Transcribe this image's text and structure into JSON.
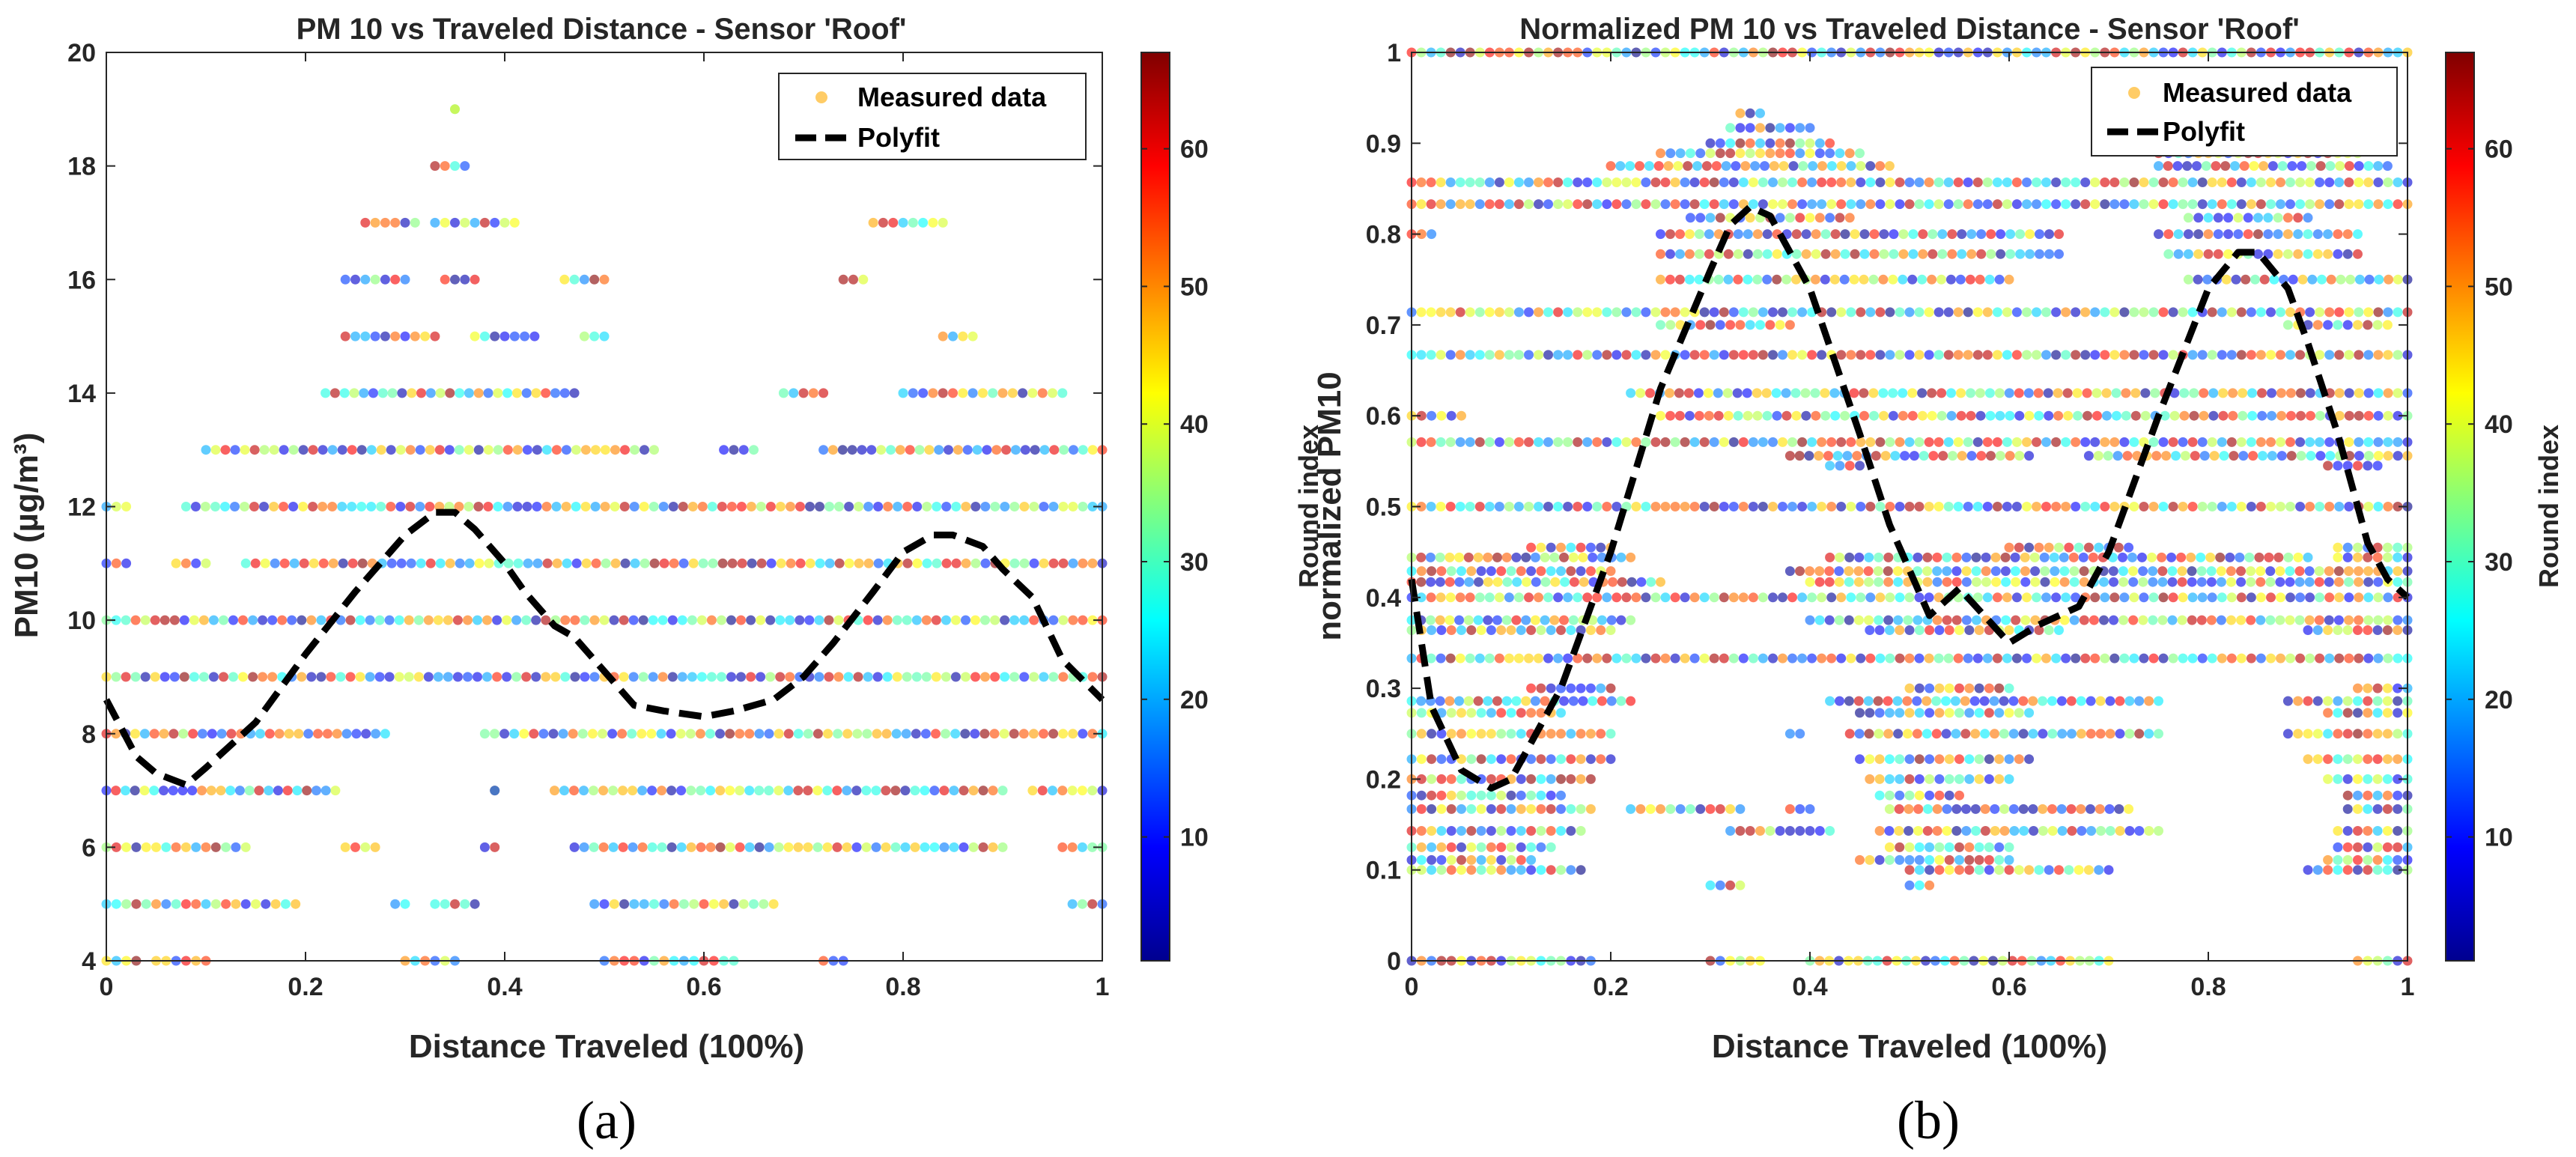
{
  "chart_data": [
    {
      "type": "scatter",
      "panel": "(a)",
      "title": "PM 10 vs Traveled Distance - Sensor 'Roof'",
      "xlabel": "Distance Traveled (100%)",
      "ylabel": "PM10 (µg/m³)",
      "xlim": [
        0,
        1
      ],
      "ylim": [
        4,
        20
      ],
      "xticks": [
        0,
        0.2,
        0.4,
        0.6,
        0.8,
        1
      ],
      "xtick_labels": [
        "0",
        "0.2",
        "0.4",
        "0.6",
        "0.8",
        "1"
      ],
      "yticks": [
        4,
        6,
        8,
        10,
        12,
        14,
        16,
        18,
        20
      ],
      "ytick_labels": [
        "4",
        "6",
        "8",
        "10",
        "12",
        "14",
        "16",
        "18",
        "20"
      ],
      "legend": [
        "Measured data",
        "Polyfit"
      ],
      "legend_location": "top-right",
      "colorbar": {
        "label": "Round index",
        "range": [
          1,
          67
        ],
        "ticks": [
          10,
          20,
          30,
          40,
          50,
          60
        ],
        "tick_labels": [
          "10",
          "20",
          "30",
          "40",
          "50",
          "60"
        ]
      },
      "scatter_rows": [
        {
          "y": 4,
          "ranges": [
            [
              0,
              0.03
            ],
            [
              0.05,
              0.1
            ],
            [
              0.3,
              0.35
            ],
            [
              0.5,
              0.63
            ],
            [
              0.72,
              0.74
            ]
          ]
        },
        {
          "y": 5,
          "ranges": [
            [
              0,
              0.19
            ],
            [
              0.29,
              0.3
            ],
            [
              0.33,
              0.37
            ],
            [
              0.49,
              0.67
            ],
            [
              0.97,
              1
            ]
          ]
        },
        {
          "y": 6,
          "ranges": [
            [
              0,
              0.14
            ],
            [
              0.24,
              0.27
            ],
            [
              0.38,
              0.39
            ],
            [
              0.47,
              0.9
            ],
            [
              0.96,
              1
            ]
          ]
        },
        {
          "y": 7,
          "ranges": [
            [
              0,
              0.23
            ],
            [
              0.39,
              0.39
            ],
            [
              0.45,
              0.9
            ],
            [
              0.93,
              1
            ]
          ]
        },
        {
          "y": 8,
          "ranges": [
            [
              0,
              0.28
            ],
            [
              0.38,
              1
            ]
          ]
        },
        {
          "y": 9,
          "ranges": [
            [
              0,
              1
            ]
          ]
        },
        {
          "y": 10,
          "ranges": [
            [
              0,
              1
            ]
          ]
        },
        {
          "y": 11,
          "ranges": [
            [
              0,
              0.02
            ],
            [
              0.07,
              0.1
            ],
            [
              0.14,
              1
            ]
          ]
        },
        {
          "y": 12,
          "ranges": [
            [
              0,
              0.02
            ],
            [
              0.08,
              1
            ]
          ]
        },
        {
          "y": 13,
          "ranges": [
            [
              0.1,
              0.55
            ],
            [
              0.62,
              0.65
            ],
            [
              0.72,
              1
            ]
          ]
        },
        {
          "y": 14,
          "ranges": [
            [
              0.22,
              0.47
            ],
            [
              0.68,
              0.72
            ],
            [
              0.8,
              0.96
            ]
          ]
        },
        {
          "y": 15,
          "ranges": [
            [
              0.24,
              0.33
            ],
            [
              0.37,
              0.43
            ],
            [
              0.48,
              0.5
            ],
            [
              0.84,
              0.87
            ]
          ]
        },
        {
          "y": 16,
          "ranges": [
            [
              0.24,
              0.3
            ],
            [
              0.34,
              0.37
            ],
            [
              0.46,
              0.5
            ],
            [
              0.74,
              0.76
            ]
          ]
        },
        {
          "y": 17,
          "ranges": [
            [
              0.26,
              0.31
            ],
            [
              0.33,
              0.41
            ],
            [
              0.77,
              0.84
            ]
          ]
        },
        {
          "y": 18,
          "ranges": [
            [
              0.33,
              0.36
            ]
          ]
        },
        {
          "y": 19,
          "ranges": [
            [
              0.35,
              0.35
            ]
          ]
        }
      ],
      "polyfit": {
        "x": [
          0,
          0.03,
          0.05,
          0.08,
          0.1,
          0.15,
          0.2,
          0.25,
          0.3,
          0.33,
          0.35,
          0.37,
          0.4,
          0.42,
          0.45,
          0.47,
          0.5,
          0.53,
          0.56,
          0.6,
          0.63,
          0.67,
          0.7,
          0.73,
          0.77,
          0.8,
          0.83,
          0.85,
          0.88,
          0.9,
          0.93,
          0.96,
          1
        ],
        "y": [
          8.6,
          7.6,
          7.3,
          7.1,
          7.4,
          8.2,
          9.4,
          10.5,
          11.5,
          11.9,
          11.9,
          11.6,
          11.0,
          10.5,
          9.9,
          9.7,
          9.1,
          8.5,
          8.4,
          8.3,
          8.4,
          8.6,
          9.0,
          9.6,
          10.5,
          11.2,
          11.5,
          11.5,
          11.3,
          10.9,
          10.4,
          9.3,
          8.6
        ]
      }
    },
    {
      "type": "scatter",
      "panel": "(b)",
      "title": "Normalized PM 10 vs Traveled Distance - Sensor 'Roof'",
      "xlabel": "Distance Traveled (100%)",
      "ylabel": "normalized PM10",
      "xlim": [
        0,
        1
      ],
      "ylim": [
        0,
        1
      ],
      "xticks": [
        0,
        0.2,
        0.4,
        0.6,
        0.8,
        1
      ],
      "xtick_labels": [
        "0",
        "0.2",
        "0.4",
        "0.6",
        "0.8",
        "1"
      ],
      "yticks": [
        0,
        0.1,
        0.2,
        0.3,
        0.4,
        0.5,
        0.6,
        0.7,
        0.8,
        0.9,
        1
      ],
      "ytick_labels": [
        "0",
        "0.1",
        "0.2",
        "0.3",
        "0.4",
        "0.5",
        "0.6",
        "0.7",
        "0.8",
        "0.9",
        "1"
      ],
      "legend": [
        "Measured data",
        "Polyfit"
      ],
      "legend_location": "top-right",
      "colorbar": {
        "label": "Round index",
        "range": [
          1,
          67
        ],
        "ticks": [
          10,
          20,
          30,
          40,
          50,
          60
        ],
        "tick_labels": [
          "10",
          "20",
          "30",
          "40",
          "50",
          "60"
        ]
      },
      "scatter_rows": [
        {
          "y": 0,
          "ranges": [
            [
              0,
              0.18
            ],
            [
              0.3,
              0.35
            ],
            [
              0.4,
              0.7
            ],
            [
              0.95,
              1
            ]
          ]
        },
        {
          "y": 0.083,
          "ranges": [
            [
              0.3,
              0.33
            ],
            [
              0.5,
              0.52
            ]
          ]
        },
        {
          "y": 0.1,
          "ranges": [
            [
              0,
              0.17
            ],
            [
              0.5,
              0.7
            ],
            [
              0.9,
              1
            ]
          ]
        },
        {
          "y": 0.111,
          "ranges": [
            [
              0,
              0.12
            ],
            [
              0.45,
              0.6
            ],
            [
              0.92,
              1
            ]
          ]
        },
        {
          "y": 0.125,
          "ranges": [
            [
              0,
              0.14
            ],
            [
              0.48,
              0.6
            ],
            [
              0.93,
              1
            ]
          ]
        },
        {
          "y": 0.143,
          "ranges": [
            [
              0,
              0.17
            ],
            [
              0.32,
              0.42
            ],
            [
              0.47,
              0.75
            ],
            [
              0.93,
              1
            ]
          ]
        },
        {
          "y": 0.167,
          "ranges": [
            [
              0,
              0.18
            ],
            [
              0.22,
              0.33
            ],
            [
              0.38,
              0.4
            ],
            [
              0.48,
              0.72
            ],
            [
              0.94,
              1
            ]
          ]
        },
        {
          "y": 0.182,
          "ranges": [
            [
              0,
              0.15
            ],
            [
              0.47,
              0.55
            ],
            [
              0.94,
              1
            ]
          ]
        },
        {
          "y": 0.2,
          "ranges": [
            [
              0,
              0.18
            ],
            [
              0.46,
              0.6
            ],
            [
              0.92,
              1
            ]
          ]
        },
        {
          "y": 0.222,
          "ranges": [
            [
              0,
              0.2
            ],
            [
              0.45,
              0.62
            ],
            [
              0.9,
              1
            ]
          ]
        },
        {
          "y": 0.25,
          "ranges": [
            [
              0,
              0.2
            ],
            [
              0.38,
              0.39
            ],
            [
              0.44,
              0.75
            ],
            [
              0.88,
              1
            ]
          ]
        },
        {
          "y": 0.273,
          "ranges": [
            [
              0,
              0.15
            ],
            [
              0.45,
              0.62
            ],
            [
              0.92,
              1
            ]
          ]
        },
        {
          "y": 0.286,
          "ranges": [
            [
              0,
              0.22
            ],
            [
              0.42,
              0.75
            ],
            [
              0.88,
              1
            ]
          ]
        },
        {
          "y": 0.3,
          "ranges": [
            [
              0.12,
              0.2
            ],
            [
              0.5,
              0.6
            ],
            [
              0.95,
              1
            ]
          ]
        },
        {
          "y": 0.333,
          "ranges": [
            [
              0,
              1
            ]
          ]
        },
        {
          "y": 0.364,
          "ranges": [
            [
              0,
              0.2
            ],
            [
              0.46,
              0.65
            ],
            [
              0.9,
              1
            ]
          ]
        },
        {
          "y": 0.375,
          "ranges": [
            [
              0,
              0.22
            ],
            [
              0.4,
              1
            ]
          ]
        },
        {
          "y": 0.4,
          "ranges": [
            [
              0,
              1
            ]
          ]
        },
        {
          "y": 0.417,
          "ranges": [
            [
              0,
              0.25
            ],
            [
              0.4,
              1
            ]
          ]
        },
        {
          "y": 0.429,
          "ranges": [
            [
              0,
              0.2
            ],
            [
              0.38,
              1
            ]
          ]
        },
        {
          "y": 0.444,
          "ranges": [
            [
              0,
              0.22
            ],
            [
              0.42,
              0.9
            ],
            [
              0.93,
              1
            ]
          ]
        },
        {
          "y": 0.455,
          "ranges": [
            [
              0.12,
              0.2
            ],
            [
              0.6,
              0.72
            ],
            [
              0.93,
              1
            ]
          ]
        },
        {
          "y": 0.5,
          "ranges": [
            [
              0,
              1
            ]
          ]
        },
        {
          "y": 0.545,
          "ranges": [
            [
              0.42,
              0.45
            ],
            [
              0.92,
              0.97
            ]
          ]
        },
        {
          "y": 0.556,
          "ranges": [
            [
              0.38,
              0.62
            ],
            [
              0.68,
              1
            ]
          ]
        },
        {
          "y": 0.571,
          "ranges": [
            [
              0,
              1
            ]
          ]
        },
        {
          "y": 0.6,
          "ranges": [
            [
              0,
              0.05
            ],
            [
              0.25,
              1
            ]
          ]
        },
        {
          "y": 0.625,
          "ranges": [
            [
              0.22,
              1
            ]
          ]
        },
        {
          "y": 0.667,
          "ranges": [
            [
              0,
              1
            ]
          ]
        },
        {
          "y": 0.7,
          "ranges": [
            [
              0.25,
              0.38
            ],
            [
              0.88,
              0.98
            ]
          ]
        },
        {
          "y": 0.714,
          "ranges": [
            [
              0,
              1
            ]
          ]
        },
        {
          "y": 0.75,
          "ranges": [
            [
              0.25,
              0.6
            ],
            [
              0.78,
              1
            ]
          ]
        },
        {
          "y": 0.778,
          "ranges": [
            [
              0.25,
              0.65
            ],
            [
              0.76,
              0.95
            ]
          ]
        },
        {
          "y": 0.8,
          "ranges": [
            [
              0,
              0.02
            ],
            [
              0.25,
              0.65
            ],
            [
              0.75,
              0.95
            ]
          ]
        },
        {
          "y": 0.818,
          "ranges": [
            [
              0.28,
              0.44
            ],
            [
              0.78,
              0.9
            ]
          ]
        },
        {
          "y": 0.833,
          "ranges": [
            [
              0,
              1
            ]
          ]
        },
        {
          "y": 0.857,
          "ranges": [
            [
              0,
              1
            ]
          ]
        },
        {
          "y": 0.875,
          "ranges": [
            [
              0.2,
              0.48
            ],
            [
              0.75,
              0.98
            ]
          ]
        },
        {
          "y": 0.889,
          "ranges": [
            [
              0.25,
              0.45
            ],
            [
              0.75,
              0.95
            ]
          ]
        },
        {
          "y": 0.9,
          "ranges": [
            [
              0.3,
              0.42
            ]
          ]
        },
        {
          "y": 0.917,
          "ranges": [
            [
              0.32,
              0.4
            ]
          ]
        },
        {
          "y": 0.933,
          "ranges": [
            [
              0.33,
              0.35
            ]
          ]
        },
        {
          "y": 1,
          "ranges": [
            [
              0,
              1
            ]
          ]
        }
      ],
      "polyfit": {
        "x": [
          0,
          0.02,
          0.05,
          0.08,
          0.1,
          0.15,
          0.2,
          0.25,
          0.3,
          0.32,
          0.34,
          0.36,
          0.4,
          0.45,
          0.48,
          0.5,
          0.52,
          0.55,
          0.6,
          0.63,
          0.67,
          0.7,
          0.75,
          0.8,
          0.83,
          0.85,
          0.88,
          0.9,
          0.93,
          0.96,
          0.98,
          1
        ],
        "y": [
          0.42,
          0.28,
          0.21,
          0.19,
          0.2,
          0.3,
          0.45,
          0.63,
          0.76,
          0.81,
          0.83,
          0.82,
          0.74,
          0.58,
          0.48,
          0.43,
          0.38,
          0.41,
          0.35,
          0.37,
          0.39,
          0.45,
          0.6,
          0.74,
          0.78,
          0.78,
          0.74,
          0.68,
          0.58,
          0.46,
          0.42,
          0.4
        ]
      }
    }
  ]
}
